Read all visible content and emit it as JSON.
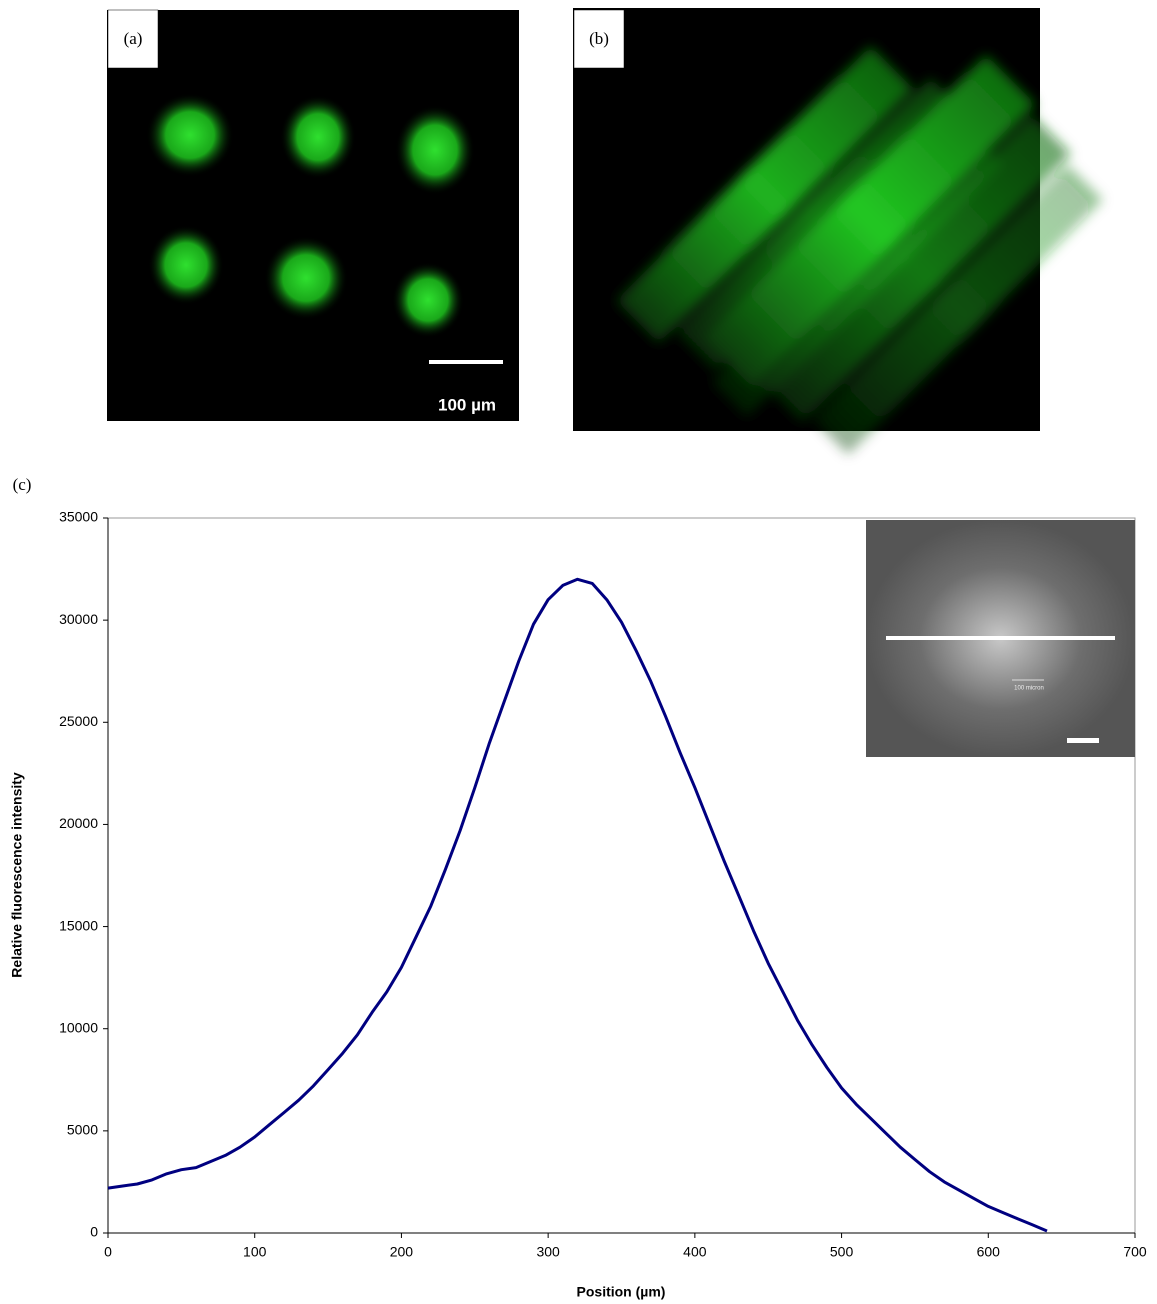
{
  "panels": {
    "a": {
      "label": "(a)",
      "scale_bar": "100 µm"
    },
    "b": {
      "label": "(b)"
    },
    "c": {
      "label": "(c)",
      "inset_scale_bar": "100 micron"
    }
  },
  "chart_data": {
    "type": "line",
    "xlabel": "Position (µm)",
    "ylabel": "Relative fluorescence intensity",
    "color": "#000080",
    "x": [
      0,
      10,
      20,
      30,
      40,
      50,
      60,
      70,
      80,
      90,
      100,
      110,
      120,
      130,
      140,
      150,
      160,
      170,
      180,
      190,
      200,
      210,
      220,
      230,
      240,
      250,
      260,
      270,
      280,
      290,
      300,
      310,
      320,
      330,
      340,
      350,
      360,
      370,
      380,
      390,
      400,
      410,
      420,
      430,
      440,
      450,
      460,
      470,
      480,
      490,
      500,
      510,
      520,
      530,
      540,
      550,
      560,
      570,
      580,
      590,
      600,
      610,
      620,
      630,
      640
    ],
    "values": [
      2200,
      2300,
      2400,
      2600,
      2900,
      3100,
      3200,
      3500,
      3800,
      4200,
      4700,
      5300,
      5900,
      6500,
      7200,
      8000,
      8800,
      9700,
      10800,
      11800,
      13000,
      14500,
      16000,
      17800,
      19700,
      21800,
      24000,
      26000,
      28000,
      29800,
      31000,
      31700,
      32000,
      31800,
      31000,
      29900,
      28500,
      27000,
      25300,
      23500,
      21800,
      20000,
      18200,
      16500,
      14800,
      13200,
      11800,
      10400,
      9200,
      8100,
      7100,
      6300,
      5600,
      4900,
      4200,
      3600,
      3000,
      2500,
      2100,
      1700,
      1300,
      1000,
      700,
      400,
      100
    ],
    "xlim": [
      0,
      700
    ],
    "xticks": [
      0,
      100,
      200,
      300,
      400,
      500,
      600,
      700
    ],
    "ylim": [
      0,
      35000
    ],
    "yticks": [
      0,
      5000,
      10000,
      15000,
      20000,
      25000,
      30000,
      35000
    ]
  }
}
